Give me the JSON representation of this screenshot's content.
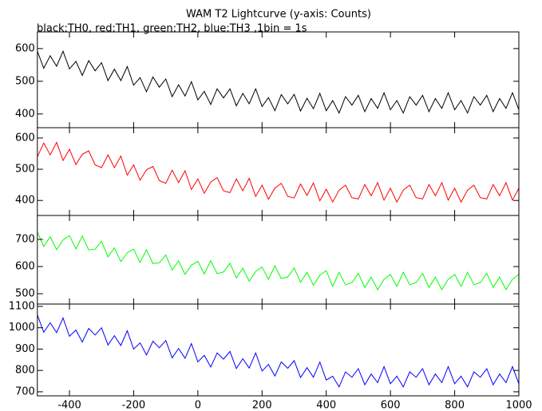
{
  "chart_data": [
    {
      "type": "line",
      "title": "WAM T2 Lightcurve (y-axis: Counts)",
      "subtitle": "black:TH0, red:TH1, green:TH2, blue:TH3 ,1bin = 1s",
      "x": [
        -500,
        -480,
        -460,
        -440,
        -420,
        -400,
        -380,
        -360,
        -340,
        -320,
        -300,
        -280,
        -260,
        -240,
        -220,
        -200,
        -180,
        -160,
        -140,
        -120,
        -100,
        -80,
        -60,
        -40,
        -20,
        0,
        20,
        40,
        60,
        80,
        100,
        120,
        140,
        160,
        180,
        200,
        220,
        240,
        260,
        280,
        300,
        320,
        340,
        360,
        380,
        400,
        420,
        440,
        460,
        480,
        500,
        520,
        540,
        560,
        580,
        600,
        620,
        640,
        660,
        680,
        700,
        720,
        740,
        760,
        780,
        800,
        820,
        840,
        860,
        880,
        900,
        920,
        940,
        960,
        980,
        1000
      ],
      "series": [
        {
          "color": "#000000",
          "values": [
            592,
            540,
            578,
            546,
            592,
            538,
            561,
            518,
            563,
            532,
            557,
            502,
            537,
            502,
            545,
            488,
            511,
            468,
            513,
            482,
            507,
            453,
            489,
            455,
            499,
            443,
            469,
            429,
            477,
            449,
            477,
            425,
            463,
            431,
            477,
            423,
            450,
            410,
            459,
            431,
            460,
            409,
            448,
            416,
            463,
            410,
            441,
            403,
            453,
            427,
            457,
            407,
            447,
            417,
            465,
            413,
            441,
            403,
            453,
            427,
            457,
            407,
            447,
            417,
            465,
            413,
            441,
            403,
            453,
            427,
            457,
            407,
            447,
            417,
            465,
            413
          ]
        }
      ],
      "xlim": [
        -500,
        1000
      ],
      "xticks": [
        -400,
        -200,
        0,
        200,
        400,
        600,
        800,
        1000
      ],
      "ylim": [
        358,
        651
      ],
      "yticks": [
        400,
        500,
        600
      ]
    },
    {
      "type": "line",
      "x": [
        -500,
        -480,
        -460,
        -440,
        -420,
        -400,
        -380,
        -360,
        -340,
        -320,
        -300,
        -280,
        -260,
        -240,
        -220,
        -200,
        -180,
        -160,
        -140,
        -120,
        -100,
        -80,
        -60,
        -40,
        -20,
        0,
        20,
        40,
        60,
        80,
        100,
        120,
        140,
        160,
        180,
        200,
        220,
        240,
        260,
        280,
        300,
        320,
        340,
        360,
        380,
        400,
        420,
        440,
        460,
        480,
        500,
        520,
        540,
        560,
        580,
        600,
        620,
        640,
        660,
        680,
        700,
        720,
        740,
        760,
        780,
        800,
        820,
        840,
        860,
        880,
        900,
        920,
        940,
        960,
        980,
        1000
      ],
      "series": [
        {
          "color": "#ff0000",
          "values": [
            540,
            584,
            546,
            586,
            528,
            564,
            515,
            548,
            559,
            514,
            505,
            546,
            505,
            542,
            481,
            514,
            465,
            498,
            509,
            464,
            455,
            497,
            457,
            495,
            435,
            469,
            423,
            459,
            473,
            431,
            425,
            469,
            431,
            471,
            413,
            449,
            404,
            440,
            455,
            413,
            408,
            453,
            416,
            456,
            399,
            436,
            395,
            433,
            449,
            409,
            405,
            451,
            415,
            457,
            401,
            439,
            395,
            433,
            449,
            409,
            405,
            451,
            415,
            457,
            401,
            439,
            395,
            433,
            449,
            409,
            405,
            451,
            415,
            457,
            401,
            439
          ]
        }
      ],
      "xlim": [
        -500,
        1000
      ],
      "xticks": [
        -400,
        -200,
        0,
        200,
        400,
        600,
        800,
        1000
      ],
      "ylim": [
        352,
        633
      ],
      "yticks": [
        400,
        500,
        600
      ]
    },
    {
      "type": "line",
      "x": [
        -500,
        -480,
        -460,
        -440,
        -420,
        -400,
        -380,
        -360,
        -340,
        -320,
        -300,
        -280,
        -260,
        -240,
        -220,
        -200,
        -180,
        -160,
        -140,
        -120,
        -100,
        -80,
        -60,
        -40,
        -20,
        0,
        20,
        40,
        60,
        80,
        100,
        120,
        140,
        160,
        180,
        200,
        220,
        240,
        260,
        280,
        300,
        320,
        340,
        360,
        380,
        400,
        420,
        440,
        460,
        480,
        500,
        520,
        540,
        560,
        580,
        600,
        620,
        640,
        660,
        680,
        700,
        720,
        740,
        760,
        780,
        800,
        820,
        840,
        860,
        880,
        900,
        920,
        940,
        960,
        980,
        1000
      ],
      "series": [
        {
          "color": "#00ff00",
          "values": [
            728,
            674,
            710,
            662,
            698,
            714,
            665,
            712,
            661,
            664,
            693,
            636,
            669,
            618,
            651,
            664,
            615,
            662,
            611,
            614,
            643,
            587,
            621,
            571,
            605,
            619,
            572,
            622,
            574,
            580,
            612,
            558,
            594,
            546,
            582,
            598,
            553,
            603,
            556,
            562,
            595,
            542,
            579,
            531,
            568,
            585,
            527,
            579,
            533,
            541,
            575,
            523,
            561,
            515,
            553,
            571,
            527,
            579,
            533,
            541,
            575,
            523,
            561,
            515,
            553,
            571,
            527,
            579,
            533,
            541,
            575,
            523,
            561,
            515,
            553,
            571
          ]
        }
      ],
      "xlim": [
        -500,
        1000
      ],
      "xticks": [
        -400,
        -200,
        0,
        200,
        400,
        600,
        800,
        1000
      ],
      "ylim": [
        462,
        788
      ],
      "yticks": [
        500,
        600,
        700
      ]
    },
    {
      "type": "line",
      "x": [
        -500,
        -480,
        -460,
        -440,
        -420,
        -400,
        -380,
        -360,
        -340,
        -320,
        -300,
        -280,
        -260,
        -240,
        -220,
        -200,
        -180,
        -160,
        -140,
        -120,
        -100,
        -80,
        -60,
        -40,
        -20,
        0,
        20,
        40,
        60,
        80,
        100,
        120,
        140,
        160,
        180,
        200,
        220,
        240,
        260,
        280,
        300,
        320,
        340,
        360,
        380,
        400,
        420,
        440,
        460,
        480,
        500,
        520,
        540,
        560,
        580,
        600,
        620,
        640,
        660,
        680,
        700,
        720,
        740,
        760,
        780,
        800,
        820,
        840,
        860,
        880,
        900,
        920,
        940,
        960,
        980,
        1000
      ],
      "series": [
        {
          "color": "#0000ff",
          "values": [
            1060,
            979,
            1023,
            977,
            1046,
            960,
            989,
            933,
            997,
            966,
            1000,
            919,
            963,
            917,
            986,
            900,
            929,
            873,
            937,
            906,
            940,
            859,
            903,
            857,
            926,
            840,
            871,
            816,
            882,
            853,
            889,
            809,
            855,
            811,
            882,
            797,
            828,
            774,
            840,
            810,
            846,
            767,
            813,
            768,
            839,
            755,
            773,
            723,
            793,
            768,
            808,
            733,
            783,
            743,
            818,
            738,
            773,
            723,
            793,
            768,
            808,
            733,
            783,
            743,
            818,
            738,
            773,
            723,
            793,
            768,
            808,
            733,
            783,
            743,
            818,
            738
          ]
        }
      ],
      "xlim": [
        -500,
        1000
      ],
      "xticks": [
        -400,
        -200,
        0,
        200,
        400,
        600,
        800,
        1000
      ],
      "ylim": [
        681,
        1111
      ],
      "yticks": [
        700,
        800,
        900,
        1000,
        1100
      ]
    }
  ]
}
